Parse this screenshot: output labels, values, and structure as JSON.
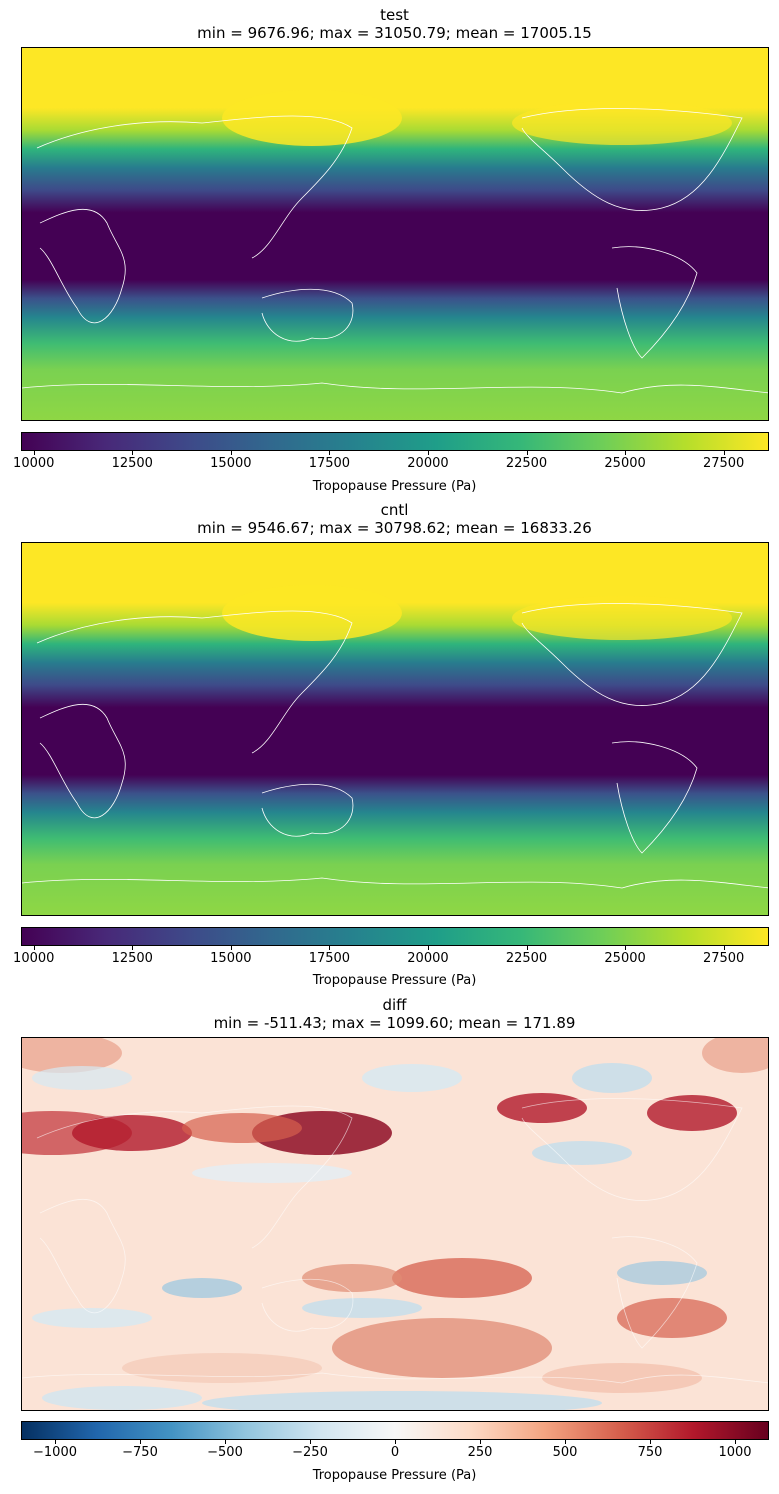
{
  "panels": [
    {
      "title": "test",
      "stats": "min = 9676.96; max = 31050.79; mean = 17005.15",
      "colormap": "viridis",
      "colorbar": {
        "label": "Tropopause Pressure (Pa)",
        "range": [
          9676.96,
          28650
        ],
        "ticks": [
          "10000",
          "12500",
          "15000",
          "17500",
          "20000",
          "22500",
          "25000",
          "27500"
        ],
        "tick_values": [
          10000,
          12500,
          15000,
          17500,
          20000,
          22500,
          25000,
          27500
        ]
      }
    },
    {
      "title": "cntl",
      "stats": "min = 9546.67; max = 30798.62; mean = 16833.26",
      "colormap": "viridis",
      "colorbar": {
        "label": "Tropopause Pressure (Pa)",
        "range": [
          9676.96,
          28650
        ],
        "ticks": [
          "10000",
          "12500",
          "15000",
          "17500",
          "20000",
          "22500",
          "25000",
          "27500"
        ],
        "tick_values": [
          10000,
          12500,
          15000,
          17500,
          20000,
          22500,
          25000,
          27500
        ]
      }
    },
    {
      "title": "diff",
      "stats": "min = -511.43; max = 1099.60; mean = 171.89",
      "colormap": "RdBu_r",
      "colorbar": {
        "label": "Tropopause Pressure (Pa)",
        "range": [
          -1100,
          1100
        ],
        "ticks": [
          "−1000",
          "−750",
          "−500",
          "−250",
          "0",
          "250",
          "500",
          "750",
          "1000"
        ],
        "tick_values": [
          -1000,
          -750,
          -500,
          -250,
          0,
          250,
          500,
          750,
          1000
        ]
      }
    }
  ],
  "chart_data": [
    {
      "type": "heatmap",
      "title": "test",
      "subtitle": "min = 9676.96; max = 31050.79; mean = 17005.15",
      "colorbar_label": "Tropopause Pressure (Pa)",
      "vmin": 9676.96,
      "vmax": 28650
    },
    {
      "type": "heatmap",
      "title": "cntl",
      "subtitle": "min = 9546.67; max = 30798.62; mean = 16833.26",
      "colorbar_label": "Tropopause Pressure (Pa)",
      "vmin": 9676.96,
      "vmax": 28650
    },
    {
      "type": "heatmap",
      "title": "diff",
      "subtitle": "min = -511.43; max = 1099.60; mean = 171.89",
      "colorbar_label": "Tropopause Pressure (Pa)",
      "vmin": -1100,
      "vmax": 1100
    }
  ]
}
